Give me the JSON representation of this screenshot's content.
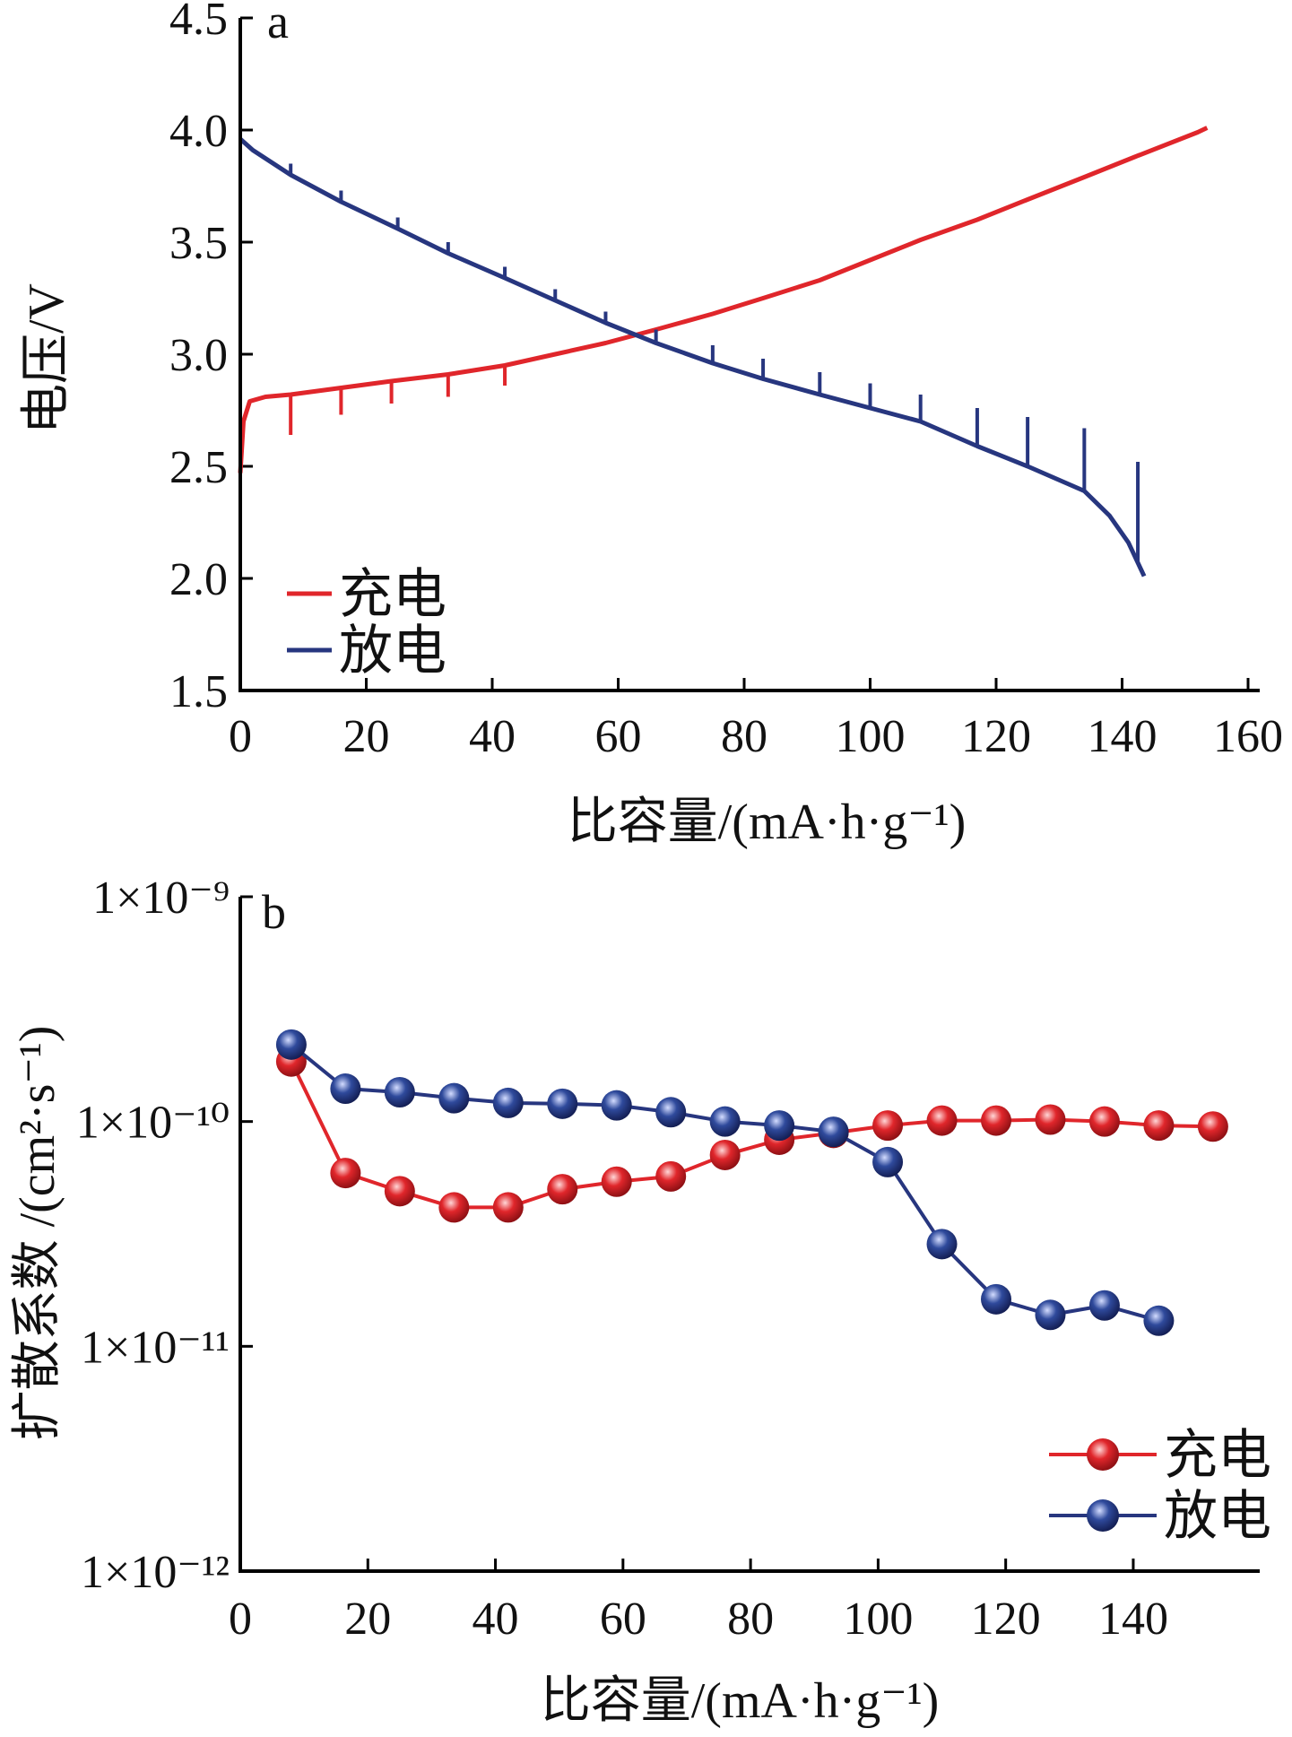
{
  "colors": {
    "charge": "#e0262b",
    "discharge": "#27367f",
    "axis": "#000000"
  },
  "chart_data": [
    {
      "panel_label": "a",
      "type": "line",
      "xlabel": "比容量/(mA·h·g⁻¹)",
      "ylabel": "电压/V",
      "xlim": [
        0,
        160
      ],
      "ylim": [
        1.5,
        4.5
      ],
      "xticks": [
        0,
        20,
        40,
        60,
        80,
        100,
        120,
        140,
        160
      ],
      "xtick_labels": [
        "0",
        "20",
        "40",
        "60",
        "80",
        "100",
        "120",
        "140",
        "160"
      ],
      "yticks": [
        1.5,
        2.0,
        2.5,
        3.0,
        3.5,
        4.0,
        4.5
      ],
      "ytick_labels": [
        "1.5",
        "2.0",
        "2.5",
        "3.0",
        "3.5",
        "4.0",
        "4.5"
      ],
      "legend_position": "lower-left",
      "series": [
        {
          "name": "充电",
          "color": "#e0262b",
          "x": [
            0,
            0.5,
            1.5,
            4,
            8,
            16,
            24,
            33,
            42,
            50,
            58,
            66,
            75,
            83,
            92,
            100,
            108,
            117,
            125,
            134,
            142,
            152,
            153.5
          ],
          "y": [
            2.47,
            2.7,
            2.79,
            2.81,
            2.82,
            2.85,
            2.88,
            2.91,
            2.95,
            3.0,
            3.05,
            3.11,
            3.18,
            3.25,
            3.33,
            3.42,
            3.51,
            3.6,
            3.69,
            3.79,
            3.88,
            3.99,
            4.01
          ],
          "relaxation_x": [
            8,
            16,
            24,
            33,
            42
          ],
          "relaxation_depth": [
            0.18,
            0.12,
            0.1,
            0.1,
            0.09
          ]
        },
        {
          "name": "放电",
          "color": "#27367f",
          "x": [
            0,
            2,
            8,
            16,
            25,
            33,
            42,
            50,
            58,
            66,
            75,
            83,
            92,
            100,
            108,
            117,
            125,
            134,
            138,
            141,
            142.5,
            143.5
          ],
          "y": [
            3.96,
            3.91,
            3.8,
            3.68,
            3.56,
            3.45,
            3.34,
            3.24,
            3.14,
            3.05,
            2.96,
            2.89,
            2.82,
            2.76,
            2.7,
            2.59,
            2.5,
            2.39,
            2.28,
            2.16,
            2.07,
            2.01
          ],
          "relaxation_x": [
            8,
            16,
            25,
            33,
            42,
            50,
            58,
            66,
            75,
            83,
            92,
            100,
            108,
            117,
            125,
            134,
            142.5
          ],
          "relaxation_height": [
            0.05,
            0.05,
            0.05,
            0.05,
            0.05,
            0.05,
            0.05,
            0.06,
            0.08,
            0.09,
            0.1,
            0.11,
            0.12,
            0.17,
            0.22,
            0.28,
            0.45
          ]
        }
      ]
    },
    {
      "panel_label": "b",
      "type": "line",
      "scale_y": "log",
      "xlabel": "比容量/(mA·h·g⁻¹)",
      "ylabel": "扩散系数 /(cm²·s⁻¹)",
      "xlim": [
        0,
        158
      ],
      "ylim": [
        1e-12,
        1e-09
      ],
      "xticks": [
        0,
        20,
        40,
        60,
        80,
        100,
        120,
        140
      ],
      "xtick_labels": [
        "0",
        "20",
        "40",
        "60",
        "80",
        "100",
        "120",
        "140"
      ],
      "yticks": [
        1e-12,
        1e-11,
        1e-10,
        1e-09
      ],
      "ytick_labels": [
        "1×10⁻¹²",
        "1×10⁻¹¹",
        "1×10⁻¹⁰",
        "1×10⁻⁹"
      ],
      "legend_position": "lower-right",
      "series": [
        {
          "name": "充电",
          "color": "#e0262b",
          "x": [
            8,
            16.5,
            25,
            33.5,
            42,
            50.5,
            59,
            67.5,
            76,
            84.5,
            93,
            101.5,
            110,
            118.5,
            127,
            135.5,
            144,
            152.5
          ],
          "y": [
            1.85e-10,
            5.9e-11,
            4.9e-11,
            4.15e-11,
            4.15e-11,
            5e-11,
            5.4e-11,
            5.7e-11,
            7.1e-11,
            8.3e-11,
            8.9e-11,
            9.6e-11,
            1.01e-10,
            1.01e-10,
            1.02e-10,
            1e-10,
            9.6e-11,
            9.5e-11
          ]
        },
        {
          "name": "放电",
          "color": "#27367f",
          "x": [
            8,
            16.5,
            25,
            33.5,
            42,
            50.5,
            59,
            67.5,
            76,
            84.5,
            93,
            101.5,
            110,
            118.5,
            127,
            135.5,
            144
          ],
          "y": [
            2.2e-10,
            1.4e-10,
            1.35e-10,
            1.27e-10,
            1.21e-10,
            1.2e-10,
            1.18e-10,
            1.1e-10,
            1e-10,
            9.6e-11,
            9e-11,
            6.6e-11,
            2.85e-11,
            1.62e-11,
            1.38e-11,
            1.52e-11,
            1.3e-11
          ]
        }
      ]
    }
  ]
}
